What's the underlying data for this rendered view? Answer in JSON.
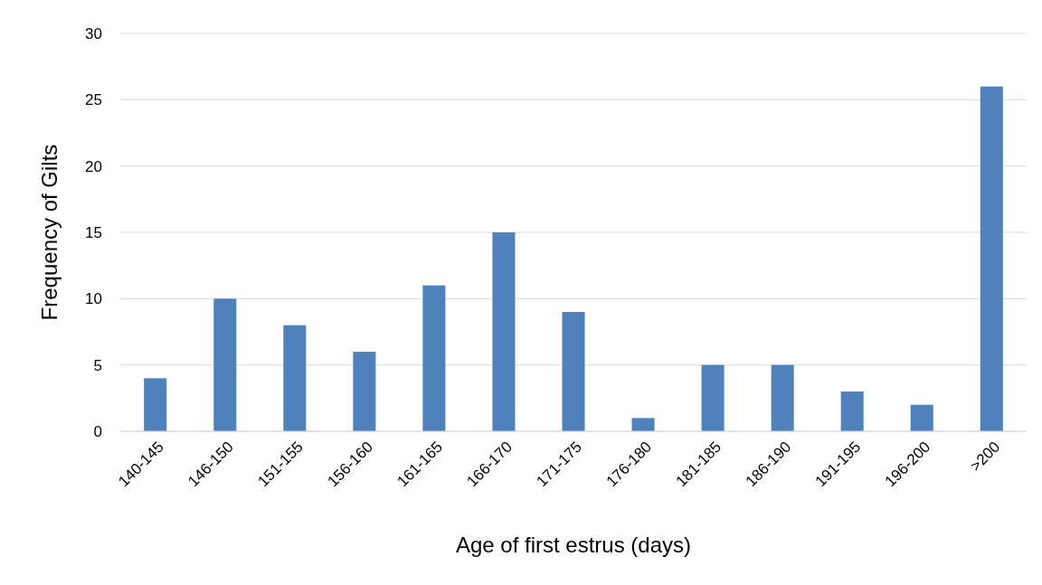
{
  "chart_data": {
    "type": "bar",
    "xlabel": "Age of first estrus (days)",
    "ylabel": "Frequency of Gilts",
    "categories": [
      "140-145",
      "146-150",
      "151-155",
      "156-160",
      "161-165",
      "166-170",
      "171-175",
      "176-180",
      "181-185",
      "186-190",
      "191-195",
      "196-200",
      ">200"
    ],
    "values": [
      4,
      10,
      8,
      6,
      11,
      15,
      9,
      1,
      5,
      5,
      3,
      2,
      26
    ],
    "color": "#4f81bd",
    "ylim": [
      0,
      30
    ],
    "yticks": [
      0,
      5,
      10,
      15,
      20,
      25,
      30
    ],
    "grid": "y"
  }
}
